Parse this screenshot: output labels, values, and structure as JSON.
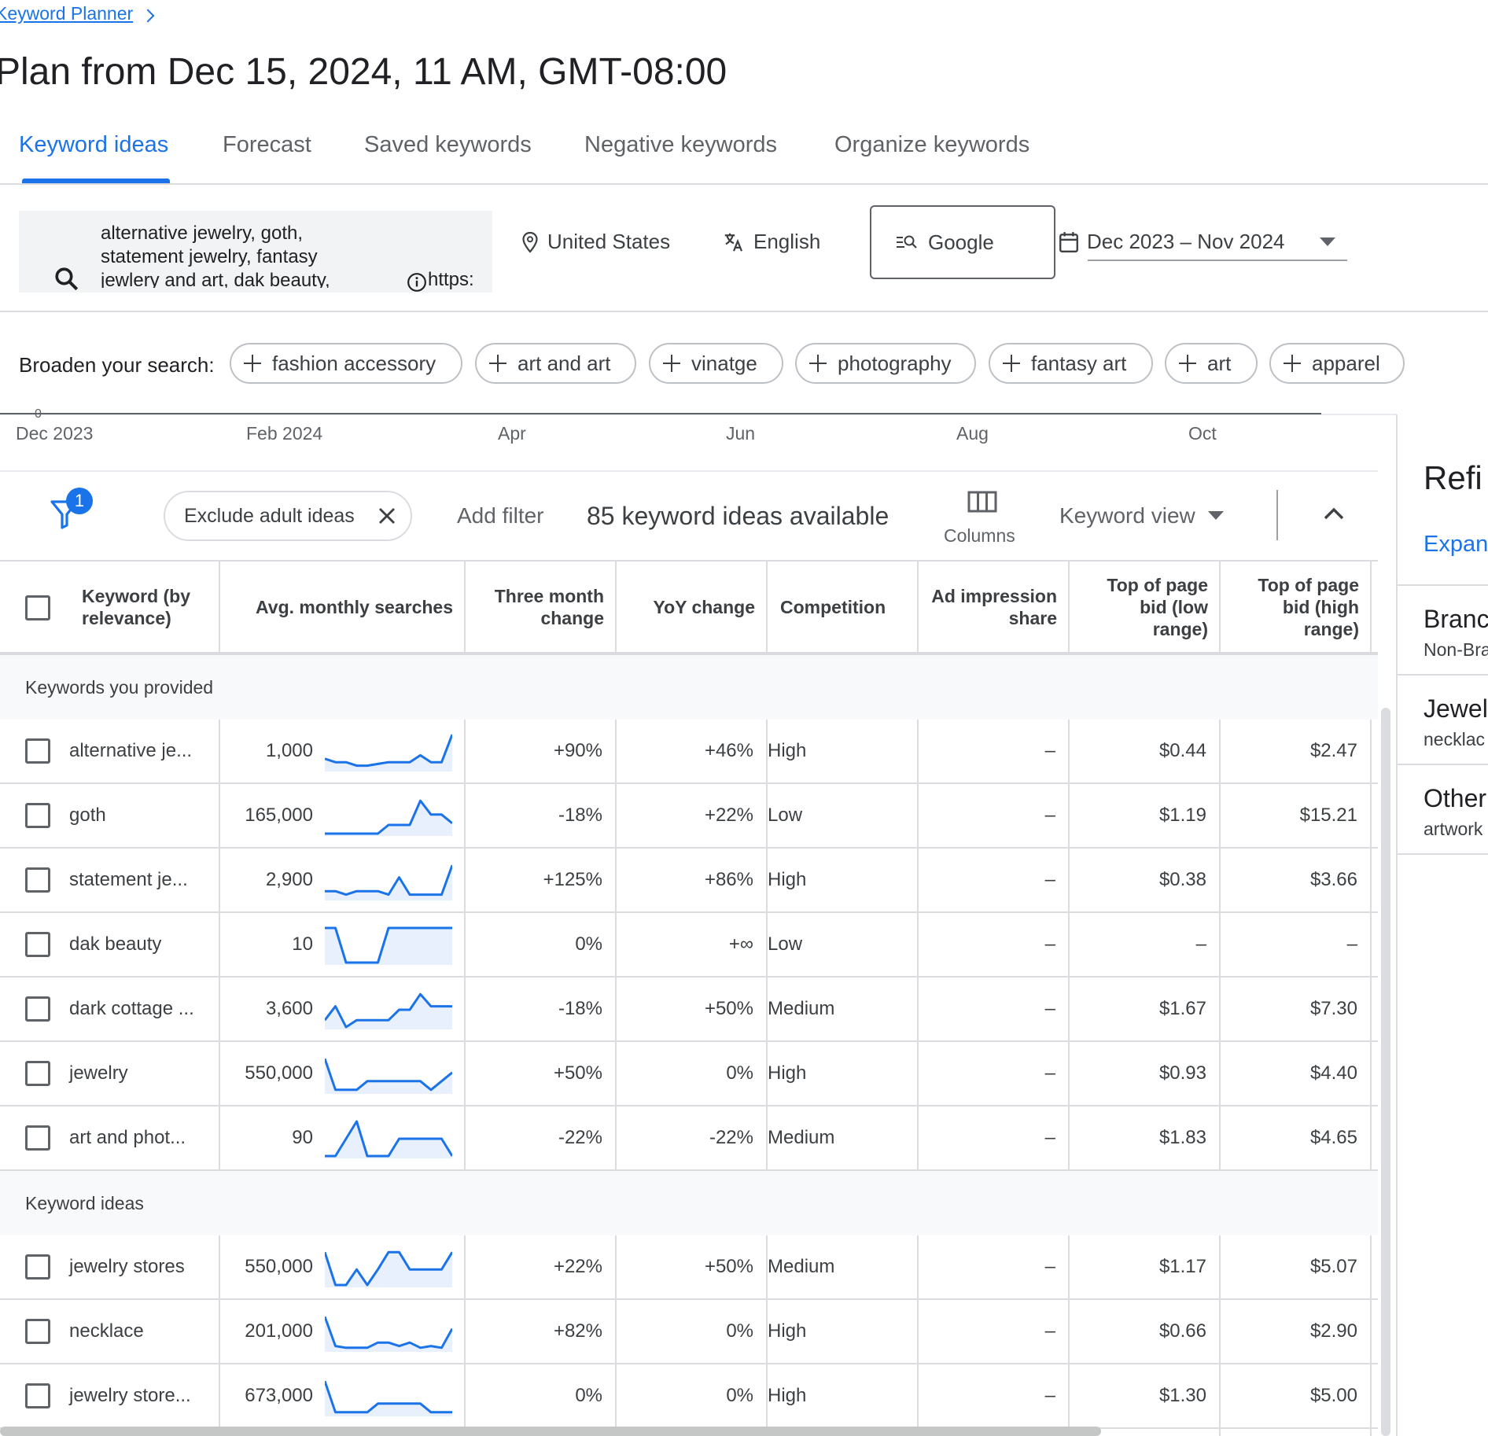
{
  "breadcrumb": {
    "label": "Keyword Planner"
  },
  "page_title": "Plan from Dec 15, 2024, 11 AM, GMT-08:00",
  "tabs": [
    {
      "label": "Keyword ideas",
      "active": true
    },
    {
      "label": "Forecast"
    },
    {
      "label": "Saved keywords"
    },
    {
      "label": "Negative keywords"
    },
    {
      "label": "Organize keywords"
    }
  ],
  "search": {
    "keywords_text": "alternative jewelry, goth, statement jewelry, fantasy jewlery and art, dak beauty,",
    "url_text": "https:"
  },
  "location": "United States",
  "language": "English",
  "network": "Google",
  "date_range": "Dec 2023 – Nov 2024",
  "broaden": {
    "label": "Broaden your search:",
    "chips": [
      "fashion accessory",
      "art and art",
      "vinatge",
      "photography",
      "fantasy art",
      "art",
      "apparel"
    ]
  },
  "trend_axis": {
    "zero_label": "0",
    "labels": [
      "Dec 2023",
      "Feb 2024",
      "Apr",
      "Jun",
      "Aug",
      "Oct"
    ]
  },
  "toolbar": {
    "filter_count": "1",
    "exclude_chip": "Exclude adult ideas",
    "add_filter": "Add filter",
    "ideas_count": "85 keyword ideas available",
    "columns": "Columns",
    "keyword_view": "Keyword view"
  },
  "table": {
    "headers": {
      "keyword": "Keyword (by relevance)",
      "avg": "Avg. monthly searches",
      "three_month": "Three month change",
      "yoy": "YoY change",
      "competition": "Competition",
      "ad_share": "Ad impression share",
      "bid_low": "Top of page bid (low range)",
      "bid_high": "Top of page bid (high range)"
    },
    "section_provided": "Keywords you provided",
    "section_ideas": "Keyword ideas",
    "provided_rows": [
      {
        "keyword": "alternative je...",
        "avg": "1,000",
        "three_month": "+90%",
        "yoy": "+46%",
        "competition": "High",
        "ad_share": "–",
        "bid_low": "$0.44",
        "bid_high": "$2.47",
        "trend": [
          0.3,
          0.2,
          0.2,
          0.1,
          0.1,
          0.15,
          0.2,
          0.2,
          0.2,
          0.4,
          0.2,
          0.2,
          1.0
        ]
      },
      {
        "keyword": "goth",
        "avg": "165,000",
        "three_month": "-18%",
        "yoy": "+22%",
        "competition": "Low",
        "ad_share": "–",
        "bid_low": "$1.19",
        "bid_high": "$15.21",
        "trend": [
          0.0,
          0.0,
          0.0,
          0.0,
          0.0,
          0.0,
          0.25,
          0.25,
          0.25,
          0.95,
          0.55,
          0.55,
          0.3
        ]
      },
      {
        "keyword": "statement je...",
        "avg": "2,900",
        "three_month": "+125%",
        "yoy": "+86%",
        "competition": "High",
        "ad_share": "–",
        "bid_low": "$0.38",
        "bid_high": "$3.66",
        "trend": [
          0.2,
          0.2,
          0.1,
          0.2,
          0.2,
          0.2,
          0.1,
          0.6,
          0.1,
          0.1,
          0.1,
          0.1,
          0.95
        ]
      },
      {
        "keyword": "dak beauty",
        "avg": "10",
        "three_month": "0%",
        "yoy": "+∞",
        "competition": "Low",
        "ad_share": "–",
        "bid_low": "–",
        "bid_high": "–",
        "trend": [
          1.0,
          1.0,
          0.0,
          0.0,
          0.0,
          0.0,
          1.0,
          1.0,
          1.0,
          1.0,
          1.0,
          1.0,
          1.0
        ]
      },
      {
        "keyword": "dark cottage ...",
        "avg": "3,600",
        "three_month": "-18%",
        "yoy": "+50%",
        "competition": "Medium",
        "ad_share": "–",
        "bid_low": "$1.67",
        "bid_high": "$7.30",
        "trend": [
          0.2,
          0.6,
          0.0,
          0.2,
          0.2,
          0.2,
          0.2,
          0.5,
          0.5,
          0.95,
          0.6,
          0.6,
          0.6
        ]
      },
      {
        "keyword": "jewelry",
        "avg": "550,000",
        "three_month": "+50%",
        "yoy": "0%",
        "competition": "High",
        "ad_share": "–",
        "bid_low": "$0.93",
        "bid_high": "$4.40",
        "trend": [
          0.95,
          0.05,
          0.05,
          0.05,
          0.3,
          0.3,
          0.3,
          0.3,
          0.3,
          0.3,
          0.05,
          0.3,
          0.55
        ]
      },
      {
        "keyword": "art and phot...",
        "avg": "90",
        "three_month": "-22%",
        "yoy": "-22%",
        "competition": "Medium",
        "ad_share": "–",
        "bid_low": "$1.83",
        "bid_high": "$4.65",
        "trend": [
          0.0,
          0.0,
          0.5,
          1.0,
          0.0,
          0.0,
          0.0,
          0.5,
          0.5,
          0.5,
          0.5,
          0.5,
          0.0
        ]
      }
    ],
    "idea_rows": [
      {
        "keyword": "jewelry stores",
        "avg": "550,000",
        "three_month": "+22%",
        "yoy": "+50%",
        "competition": "Medium",
        "ad_share": "–",
        "bid_low": "$1.17",
        "bid_high": "$5.07",
        "trend": [
          0.95,
          0.0,
          0.0,
          0.45,
          0.0,
          0.45,
          0.95,
          0.95,
          0.45,
          0.45,
          0.45,
          0.45,
          0.95
        ]
      },
      {
        "keyword": "necklace",
        "avg": "201,000",
        "three_month": "+82%",
        "yoy": "0%",
        "competition": "High",
        "ad_share": "–",
        "bid_low": "$0.66",
        "bid_high": "$2.90",
        "trend": [
          0.95,
          0.1,
          0.05,
          0.05,
          0.05,
          0.2,
          0.2,
          0.1,
          0.2,
          0.05,
          0.1,
          0.05,
          0.6
        ]
      },
      {
        "keyword": "jewelry store...",
        "avg": "673,000",
        "three_month": "0%",
        "yoy": "0%",
        "competition": "High",
        "ad_share": "–",
        "bid_low": "$1.30",
        "bid_high": "$5.00",
        "trend": [
          0.95,
          0.05,
          0.05,
          0.05,
          0.05,
          0.3,
          0.3,
          0.3,
          0.3,
          0.3,
          0.05,
          0.05,
          0.05
        ]
      }
    ]
  },
  "refine": {
    "title": "Refi",
    "expand": "Expan",
    "groups": [
      {
        "title": "Branc",
        "sub": "Non-Bra"
      },
      {
        "title": "Jewel",
        "sub": "necklac"
      },
      {
        "title": "Other",
        "sub": "artwork"
      }
    ]
  },
  "colors": {
    "accent": "#1a73e8",
    "spark_fill": "#e8f0fe"
  }
}
